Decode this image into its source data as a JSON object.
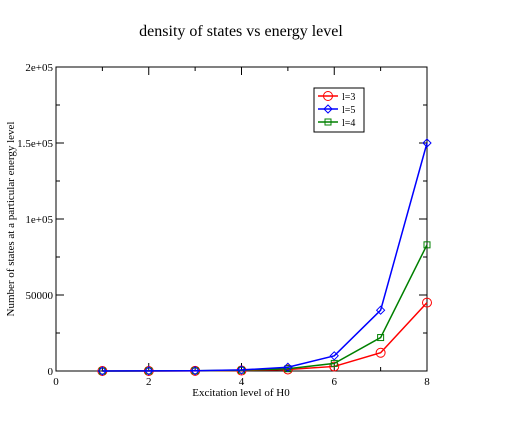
{
  "chart_data": {
    "type": "line",
    "title": "density of states vs energy level",
    "xlabel": "Excitation level of H0",
    "ylabel": "Number of states at a particular energy level",
    "xlim": [
      0,
      8
    ],
    "ylim": [
      0,
      200000
    ],
    "x_ticks": [
      0,
      2,
      4,
      6,
      8
    ],
    "x_tick_labels": [
      "0",
      "2",
      "4",
      "6",
      "8"
    ],
    "y_ticks": [
      0,
      50000,
      100000,
      150000,
      200000
    ],
    "y_tick_labels": [
      "0",
      "50000",
      "1e+05",
      "1.5e+05",
      "2e+05"
    ],
    "grid": false,
    "legend_position": "top-right",
    "series": [
      {
        "name": "l=3",
        "color": "#ff0000",
        "marker": "circle",
        "x": [
          1,
          2,
          3,
          4,
          5,
          6,
          7,
          8
        ],
        "values": [
          0,
          0,
          100,
          300,
          1000,
          3000,
          12000,
          45000
        ]
      },
      {
        "name": "l=5",
        "color": "#0000ff",
        "marker": "diamond",
        "x": [
          1,
          2,
          3,
          4,
          5,
          6,
          7,
          8
        ],
        "values": [
          0,
          100,
          200,
          700,
          2500,
          10000,
          40000,
          150000
        ]
      },
      {
        "name": "l=4",
        "color": "#008000",
        "marker": "square",
        "x": [
          1,
          2,
          3,
          4,
          5,
          6,
          7,
          8
        ],
        "values": [
          0,
          50,
          150,
          500,
          1500,
          5000,
          22000,
          83000
        ]
      }
    ]
  }
}
